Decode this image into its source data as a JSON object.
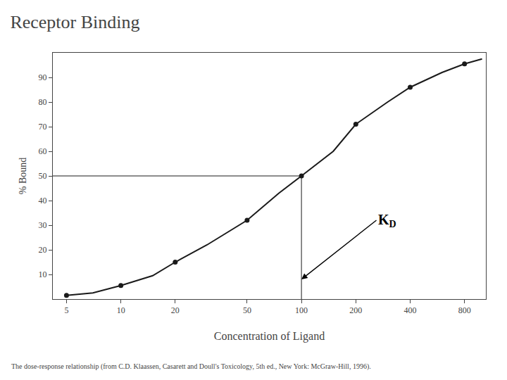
{
  "chart_data": {
    "type": "line",
    "title": "Receptor Binding",
    "subtitle": "The dose-response relationship (from C.D. Klaassen, Casarett and Doull's Toxicology, 5th ed., New York: McGraw-Hill, 1996).",
    "xlabel": "Concentration of Ligand",
    "ylabel": "% Bound",
    "log": "x",
    "grid": false,
    "xlim": [
      4.2,
      1050
    ],
    "ylim": [
      0,
      100
    ],
    "xticks": [
      5,
      10,
      20,
      50,
      100,
      200,
      400,
      800
    ],
    "yticks": [
      10,
      20,
      30,
      40,
      50,
      60,
      70,
      80,
      90
    ],
    "series": [
      {
        "type": "line",
        "color": "#1a1a1a",
        "line_style": "solid",
        "x": [
          5,
          7,
          10,
          15,
          20,
          30,
          50,
          75,
          100,
          150,
          200,
          300,
          400,
          600,
          800,
          1000
        ],
        "values": [
          1.5,
          2.5,
          5.5,
          9.5,
          15,
          22,
          32,
          43,
          50,
          60,
          71,
          80,
          86,
          92,
          95.5,
          97.5
        ]
      },
      {
        "type": "scatter",
        "color": "#1a1a1a",
        "marker": "circle",
        "x": [
          5,
          10,
          20,
          50,
          100,
          200,
          400,
          800
        ],
        "values": [
          1.5,
          5.5,
          15,
          32,
          50,
          71,
          86,
          95.5
        ]
      }
    ],
    "kd": {
      "x": 100,
      "y": 50
    },
    "annotations": [
      {
        "text": "K",
        "subscript": "D",
        "x": 260,
        "y": 32,
        "arrow_x": 100,
        "arrow_y": 8
      }
    ]
  }
}
